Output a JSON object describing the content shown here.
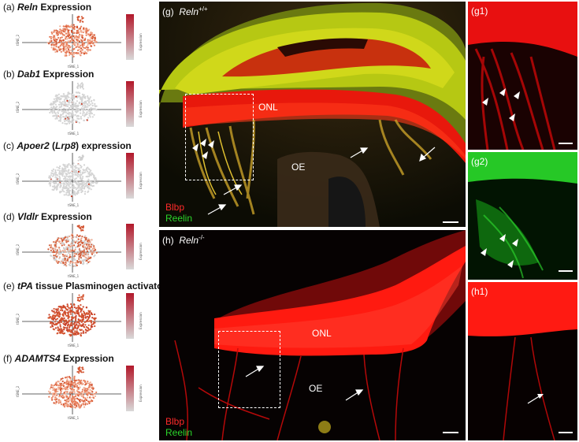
{
  "tsne_panels": [
    {
      "letter": "(a)",
      "parts": [
        {
          "t": "Reln",
          "i": true
        },
        {
          "t": " Expression",
          "i": false
        }
      ]
    },
    {
      "letter": "(b)",
      "parts": [
        {
          "t": "Dab1",
          "i": true
        },
        {
          "t": " Expression",
          "i": false
        }
      ]
    },
    {
      "letter": "(c)",
      "parts": [
        {
          "t": "Apoer2",
          "i": true
        },
        {
          "t": " (",
          "i": false
        },
        {
          "t": "Lrp8",
          "i": true
        },
        {
          "t": ") expression",
          "i": false
        }
      ]
    },
    {
      "letter": "(d)",
      "parts": [
        {
          "t": "Vldlr",
          "i": true
        },
        {
          "t": " Expression",
          "i": false
        }
      ]
    },
    {
      "letter": "(e)",
      "parts": [
        {
          "t": "tPA",
          "i": true
        },
        {
          "t": " tissue Plasminogen activator",
          "i": false
        }
      ]
    },
    {
      "letter": "(f)",
      "parts": [
        {
          "t": "ADAMTS4",
          "i": true
        },
        {
          "t": " Expression",
          "i": false
        }
      ]
    }
  ],
  "tsne_axes": {
    "x": "tSNE_1",
    "y": "tSNE_2",
    "colorbar": "Expression"
  },
  "micro": {
    "g": {
      "label": "(g)",
      "genotype": "Reln",
      "sup": "+/+"
    },
    "g1": {
      "label": "(g1)"
    },
    "g2": {
      "label": "(g2)"
    },
    "h": {
      "label": "(h)",
      "genotype": "Reln",
      "sup": "-/-"
    },
    "h1": {
      "label": "(h1)"
    },
    "onl": "ONL",
    "oe": "OE",
    "legend": {
      "red": "Blbp",
      "green": "Reelin"
    }
  },
  "colors": {
    "red": "#ff2a2a",
    "green": "#2bd62b",
    "tsne_high": "#b2182b",
    "tsne_low": "#d9d9d9"
  }
}
